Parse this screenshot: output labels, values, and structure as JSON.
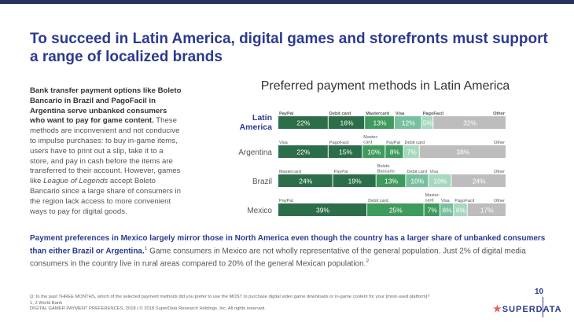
{
  "page": {
    "title": "To succeed in Latin America, digital games and storefronts must support a range of localized brands",
    "left_text": {
      "lead": "Bank transfer payment options like Boleto Bancario in Brazil and PagoFacil in Argentina serve unbanked consumers who want to pay for game content.",
      "body1": " These methods are inconvenient and not conducive to impulse purchases: to buy in-game items, users have to print out a slip, take it to a store, and pay in cash before the items are transferred to their account. However, games like ",
      "em": "League of Legends",
      "body2": " accept Boleto Bancario since a large share of consumers in the region lack access to more convenient ways to pay for digital goods."
    },
    "bottom_text": {
      "lead": "Payment preferences in Mexico largely mirror those in North America even though the country has a larger share of unbanked consumers than either Brazil or Argentina.",
      "sup1": "1",
      "body": " Game consumers in Mexico are not wholly representative of the general population. Just 2% of digital media consumers in the country live in rural areas compared to 20% of the general Mexican population.",
      "sup2": "2"
    },
    "footnotes": [
      "Q: In the past THREE MONTHS, which of the selected payment methods did you prefer to use the MOST to purchase digital video game downloads or in-game content for your [most-used platform]?",
      "1, 2 World Bank",
      "DIGITAL GAMER PAYMENT PREFERENCES, 2018 | © 2018 SuperData Research Holdings, Inc. All rights reserved."
    ],
    "page_number": "10",
    "logo": {
      "star": "★",
      "text": "SUPERDATA"
    }
  },
  "chart_data": {
    "type": "bar",
    "orientation": "horizontal",
    "stacked": true,
    "title": "Preferred payment methods in Latin America",
    "xlim": [
      0,
      100
    ],
    "unit": "%",
    "rows": [
      {
        "country": "Latin America",
        "highlight": true,
        "segments": [
          {
            "method": "PayPal",
            "value": 22,
            "label": "22%",
            "color": "#2c6e49"
          },
          {
            "method": "Debit card",
            "value": 16,
            "label": "16%",
            "color": "#2c6e49"
          },
          {
            "method": "Mastercard",
            "value": 13,
            "label": "13%",
            "color": "#3f9a5d"
          },
          {
            "method": "Visa",
            "value": 12,
            "label": "12%",
            "color": "#77c09e"
          },
          {
            "method": "PagoFacil",
            "value": 5,
            "label": "5%",
            "color": "#a6d8bd"
          },
          {
            "method": "Other",
            "value": 32,
            "label": "32%",
            "color": "#bdbdbd"
          }
        ]
      },
      {
        "country": "Argentina",
        "highlight": false,
        "segments": [
          {
            "method": "Visa",
            "value": 22,
            "label": "22%",
            "color": "#2c6e49"
          },
          {
            "method": "PagoFacil",
            "value": 15,
            "label": "15%",
            "color": "#2c6e49"
          },
          {
            "method": "Master-card",
            "value": 10,
            "label": "10%",
            "color": "#3f9a5d"
          },
          {
            "method": "PayPal",
            "value": 8,
            "label": "8%",
            "color": "#3f9a5d"
          },
          {
            "method": "Debit card",
            "value": 7,
            "label": "7%",
            "color": "#a6d8bd"
          },
          {
            "method": "Other",
            "value": 38,
            "label": "38%",
            "color": "#bdbdbd"
          }
        ]
      },
      {
        "country": "Brazil",
        "highlight": false,
        "segments": [
          {
            "method": "Mastercard",
            "value": 24,
            "label": "24%",
            "color": "#2c6e49"
          },
          {
            "method": "PayPal",
            "value": 19,
            "label": "19%",
            "color": "#2c6e49"
          },
          {
            "method": "Boleto Bancario",
            "value": 13,
            "label": "13%",
            "color": "#3f9a5d"
          },
          {
            "method": "Debit card",
            "value": 10,
            "label": "10%",
            "color": "#77c09e"
          },
          {
            "method": "Visa",
            "value": 10,
            "label": "10%",
            "color": "#a6d8bd"
          },
          {
            "method": "Other",
            "value": 24,
            "label": "24%",
            "color": "#bdbdbd"
          }
        ]
      },
      {
        "country": "Mexico",
        "highlight": false,
        "segments": [
          {
            "method": "PayPal",
            "value": 39,
            "label": "39%",
            "color": "#2c6e49"
          },
          {
            "method": "Debit card",
            "value": 25,
            "label": "25%",
            "color": "#3f9a5d"
          },
          {
            "method": "Master-card",
            "value": 7,
            "label": "7%",
            "color": "#3f9a5d"
          },
          {
            "method": "Visa",
            "value": 6,
            "label": "6%",
            "color": "#77c09e"
          },
          {
            "method": "PagoFacil",
            "value": 6,
            "label": "6%",
            "color": "#a6d8bd"
          },
          {
            "method": "Other",
            "value": 17,
            "label": "17%",
            "color": "#bdbdbd"
          }
        ]
      }
    ]
  }
}
